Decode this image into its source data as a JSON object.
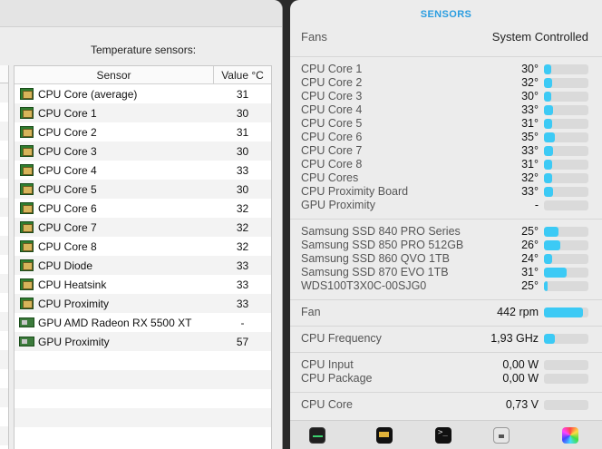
{
  "left": {
    "heading": "Temperature sensors:",
    "columns": {
      "sensor": "Sensor",
      "value": "Value °C"
    },
    "rows": [
      {
        "name": "CPU Core (average)",
        "value": "31",
        "icon": "cpu-chip-icon"
      },
      {
        "name": "CPU Core 1",
        "value": "30",
        "icon": "cpu-chip-icon"
      },
      {
        "name": "CPU Core 2",
        "value": "31",
        "icon": "cpu-chip-icon"
      },
      {
        "name": "CPU Core 3",
        "value": "30",
        "icon": "cpu-chip-icon"
      },
      {
        "name": "CPU Core 4",
        "value": "33",
        "icon": "cpu-chip-icon"
      },
      {
        "name": "CPU Core 5",
        "value": "30",
        "icon": "cpu-chip-icon"
      },
      {
        "name": "CPU Core 6",
        "value": "32",
        "icon": "cpu-chip-icon"
      },
      {
        "name": "CPU Core 7",
        "value": "32",
        "icon": "cpu-chip-icon"
      },
      {
        "name": "CPU Core 8",
        "value": "32",
        "icon": "cpu-chip-icon"
      },
      {
        "name": "CPU Diode",
        "value": "33",
        "icon": "cpu-chip-icon"
      },
      {
        "name": "CPU Heatsink",
        "value": "33",
        "icon": "cpu-chip-icon"
      },
      {
        "name": "CPU Proximity",
        "value": "33",
        "icon": "cpu-chip-icon"
      },
      {
        "name": "GPU AMD Radeon RX 5500 XT",
        "value": "-",
        "icon": "gpu-card-icon"
      },
      {
        "name": "GPU Proximity",
        "value": "57",
        "icon": "gpu-card-icon"
      }
    ]
  },
  "right": {
    "header": "SENSORS",
    "fans": {
      "label": "Fans",
      "value": "System Controlled"
    },
    "group1": [
      {
        "label": "CPU Core 1",
        "value": "30°",
        "fill": 0.17
      },
      {
        "label": "CPU Core 2",
        "value": "32°",
        "fill": 0.19
      },
      {
        "label": "CPU Core 3",
        "value": "30°",
        "fill": 0.17
      },
      {
        "label": "CPU Core 4",
        "value": "33°",
        "fill": 0.2
      },
      {
        "label": "CPU Core 5",
        "value": "31°",
        "fill": 0.18
      },
      {
        "label": "CPU Core 6",
        "value": "35°",
        "fill": 0.25
      },
      {
        "label": "CPU Core 7",
        "value": "33°",
        "fill": 0.2
      },
      {
        "label": "CPU Core 8",
        "value": "31°",
        "fill": 0.18
      },
      {
        "label": "CPU Cores",
        "value": "32°",
        "fill": 0.19
      },
      {
        "label": "CPU Proximity Board",
        "value": "33°",
        "fill": 0.2
      },
      {
        "label": "GPU Proximity",
        "value": "-",
        "fill": 0
      }
    ],
    "group2": [
      {
        "label": "Samsung SSD 840 PRO Series",
        "value": "25°",
        "fill": 0.32
      },
      {
        "label": "Samsung SSD 850 PRO 512GB",
        "value": "26°",
        "fill": 0.36
      },
      {
        "label": "Samsung SSD 860 QVO 1TB",
        "value": "24°",
        "fill": 0.18
      },
      {
        "label": "Samsung SSD 870 EVO 1TB",
        "value": "31°",
        "fill": 0.52
      },
      {
        "label": "WDS100T3X0C-00SJG0",
        "value": "25°",
        "fill": 0.08
      }
    ],
    "fan": {
      "label": "Fan",
      "value": "442 rpm",
      "fill": 0.88
    },
    "freq": {
      "label": "CPU Frequency",
      "value": "1,93 GHz",
      "fill": 0.24
    },
    "power": [
      {
        "label": "CPU Input",
        "value": "0,00 W",
        "fill": 0
      },
      {
        "label": "CPU Package",
        "value": "0,00 W",
        "fill": 0
      }
    ],
    "voltage": {
      "label": "CPU Core",
      "value": "0,73 V",
      "fill": 0
    },
    "dock": [
      "activity-monitor-icon",
      "console-icon",
      "terminal-icon",
      "robot-icon",
      "color-wheel-icon"
    ]
  }
}
